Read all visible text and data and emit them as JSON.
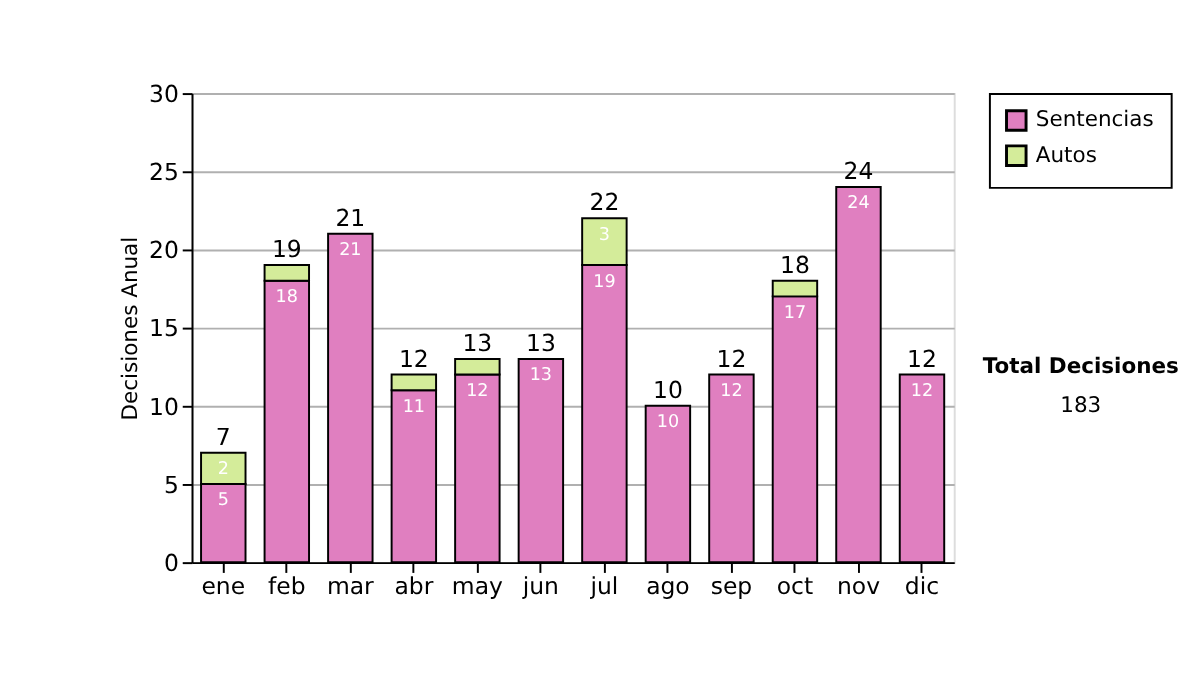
{
  "chart_data": {
    "type": "bar",
    "stacked": true,
    "ylabel": "Decisiones Anual",
    "categories": [
      "ene",
      "feb",
      "mar",
      "abr",
      "may",
      "jun",
      "jul",
      "ago",
      "sep",
      "oct",
      "nov",
      "dic"
    ],
    "series": [
      {
        "name": "Sentencias",
        "color": "#e07fc0",
        "values": [
          5,
          18,
          21,
          11,
          12,
          13,
          19,
          10,
          12,
          17,
          24,
          12
        ],
        "value_labels": [
          "5",
          "18",
          "21",
          "11",
          "12",
          "13",
          "19",
          "10",
          "12",
          "17",
          "24",
          "12"
        ]
      },
      {
        "name": "Autos",
        "color": "#d4ec9a",
        "values": [
          2,
          1,
          0,
          1,
          1,
          0,
          3,
          0,
          0,
          1,
          0,
          0
        ],
        "value_labels": [
          "2",
          null,
          null,
          null,
          null,
          null,
          "3",
          null,
          null,
          null,
          null,
          null
        ]
      }
    ],
    "totals": [
      "7",
      "19",
      "21",
      "12",
      "13",
      "13",
      "22",
      "10",
      "12",
      "18",
      "24",
      "12"
    ],
    "ylim": [
      0,
      30
    ],
    "yticks": [
      0,
      5,
      10,
      15,
      20,
      25,
      30
    ],
    "grid": "y",
    "legend": "right",
    "annotations": [
      "Total Decisiones",
      "183"
    ]
  }
}
